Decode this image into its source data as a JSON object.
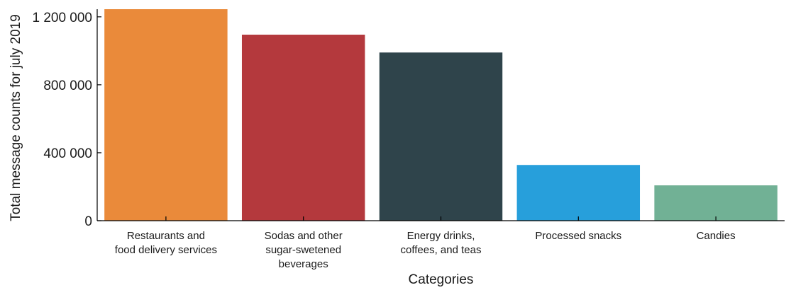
{
  "chart_data": {
    "type": "bar",
    "categories": [
      [
        "Restaurants and",
        "food delivery services"
      ],
      [
        "Sodas and other",
        "sugar-swetened",
        "beverages"
      ],
      [
        "Energy drinks,",
        "coffees, and teas"
      ],
      [
        "Processed snacks"
      ],
      [
        "Candies"
      ]
    ],
    "values": [
      1245000,
      1095000,
      990000,
      328000,
      208000
    ],
    "colors": [
      "#EA8A3A",
      "#B4393D",
      "#2F444B",
      "#279FDB",
      "#71B195"
    ],
    "xlabel": "Categories",
    "ylabel": "Total message counts for july 2019",
    "ylim": [
      0,
      1245000
    ],
    "yticks": [
      0,
      400000,
      800000,
      1200000
    ],
    "ytick_labels": [
      "0",
      "400 000",
      "800 000",
      "1 200 000"
    ],
    "grid": false,
    "legend": "none"
  }
}
